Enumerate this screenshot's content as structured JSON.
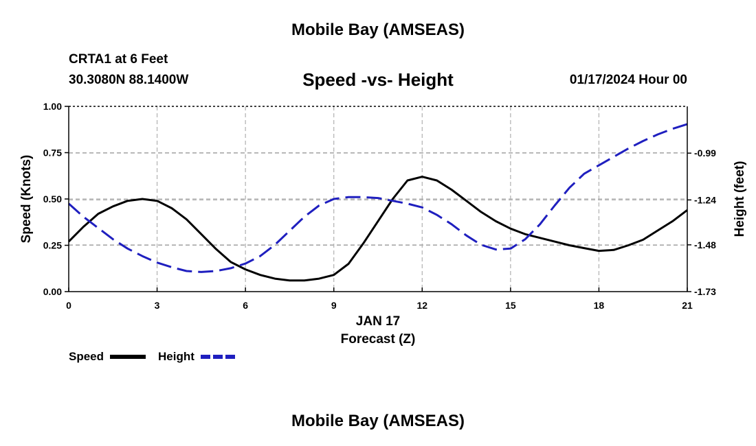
{
  "header": {
    "title": "Mobile Bay (AMSEAS)",
    "station": "CRTA1 at 6 Feet",
    "coords": "30.3080N  88.1400W",
    "subtitle": "Speed -vs- Height",
    "datetime": "01/17/2024 Hour 00"
  },
  "footer": {
    "title": "Mobile Bay (AMSEAS)"
  },
  "chart_data": {
    "type": "line",
    "title": "Speed -vs- Height",
    "xlabel": "Forecast (Z)",
    "xlabel_date": "JAN 17",
    "ylabel": "Speed (Knots)",
    "y2label": "Height (feet)",
    "xlim": [
      0,
      21
    ],
    "ylim": [
      0,
      1
    ],
    "y2lim": [
      -1.73,
      -0.74
    ],
    "x_ticks": [
      0,
      3,
      6,
      9,
      12,
      15,
      18,
      21
    ],
    "x_tick_labels": [
      "0",
      "3",
      "6",
      "9",
      "12",
      "15",
      "18",
      "21"
    ],
    "y_ticks": [
      0,
      0.25,
      0.5,
      0.75,
      1.0
    ],
    "y_tick_labels": [
      "0.00",
      "0.25",
      "0.50",
      "0.75",
      "1.00"
    ],
    "y2_ticks": [
      -1.73,
      -1.48,
      -1.24,
      -0.99
    ],
    "y2_tick_labels": [
      "-1.73",
      "-1.48",
      "-1.24",
      "-0.99"
    ],
    "grid": true,
    "series": [
      {
        "name": "Speed",
        "axis": "left",
        "color": "#000000",
        "dash": "solid",
        "x": [
          0,
          0.5,
          1,
          1.5,
          2,
          2.5,
          3,
          3.5,
          4,
          4.5,
          5,
          5.5,
          6,
          6.5,
          7,
          7.5,
          8,
          8.5,
          9,
          9.5,
          10,
          10.5,
          11,
          11.5,
          12,
          12.5,
          13,
          13.5,
          14,
          14.5,
          15,
          15.5,
          16,
          16.5,
          17,
          17.5,
          18,
          18.5,
          19,
          19.5,
          20,
          20.5,
          21
        ],
        "values": [
          0.27,
          0.35,
          0.42,
          0.46,
          0.49,
          0.5,
          0.49,
          0.45,
          0.39,
          0.31,
          0.23,
          0.16,
          0.12,
          0.09,
          0.07,
          0.06,
          0.06,
          0.07,
          0.09,
          0.15,
          0.26,
          0.38,
          0.5,
          0.6,
          0.62,
          0.6,
          0.55,
          0.49,
          0.43,
          0.38,
          0.34,
          0.31,
          0.29,
          0.27,
          0.25,
          0.235,
          0.22,
          0.225,
          0.25,
          0.28,
          0.33,
          0.38,
          0.44
        ]
      },
      {
        "name": "Height",
        "axis": "right",
        "color": "#1f1fbf",
        "dash": "dashed",
        "x": [
          0,
          0.5,
          1,
          1.5,
          2,
          2.5,
          3,
          3.5,
          4,
          4.5,
          5,
          5.5,
          6,
          6.5,
          7,
          7.5,
          8,
          8.5,
          9,
          9.5,
          10,
          10.5,
          11,
          11.5,
          12,
          12.5,
          13,
          13.5,
          14,
          14.5,
          15,
          15.5,
          16,
          16.5,
          17,
          17.5,
          18,
          18.5,
          19,
          19.5,
          20,
          20.5,
          21
        ],
        "values": [
          -1.26,
          -1.33,
          -1.39,
          -1.45,
          -1.5,
          -1.54,
          -1.575,
          -1.6,
          -1.62,
          -1.625,
          -1.62,
          -1.605,
          -1.58,
          -1.54,
          -1.48,
          -1.405,
          -1.33,
          -1.27,
          -1.235,
          -1.225,
          -1.225,
          -1.23,
          -1.245,
          -1.26,
          -1.28,
          -1.32,
          -1.37,
          -1.43,
          -1.48,
          -1.505,
          -1.5,
          -1.45,
          -1.37,
          -1.27,
          -1.175,
          -1.1,
          -1.055,
          -1.01,
          -0.965,
          -0.925,
          -0.89,
          -0.86,
          -0.835
        ]
      }
    ],
    "legend": [
      {
        "label": "Speed",
        "color": "#000000",
        "dash": "solid"
      },
      {
        "label": "Height",
        "color": "#1f1fbf",
        "dash": "dashed"
      }
    ]
  }
}
